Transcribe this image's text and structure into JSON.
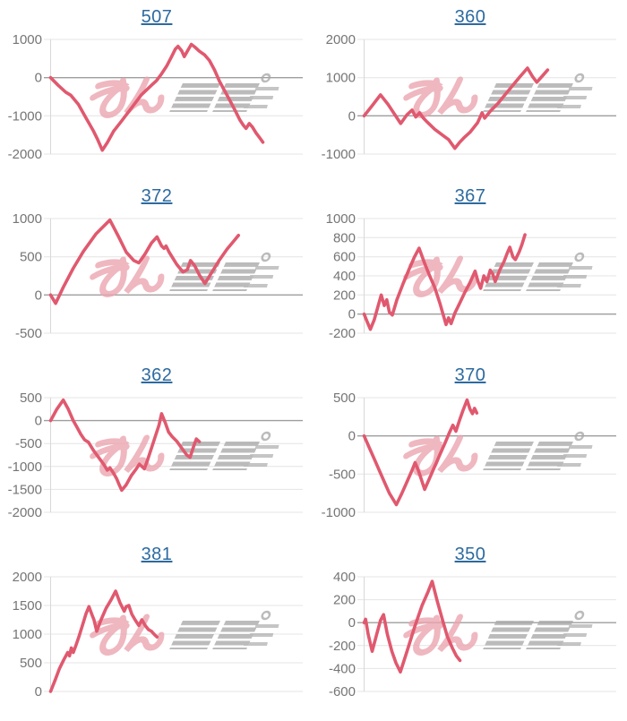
{
  "watermark": {
    "text": "みんレポ",
    "part1": "みん",
    "part2": "レポ"
  },
  "colors": {
    "line": "#e0596f",
    "grid": "#e4e4e4",
    "zero_line": "#9e9e9e",
    "axis": "#d8d8d8",
    "tick_label": "#757575",
    "title": "#2d6a9f",
    "watermark_pink": "#eba3ae",
    "watermark_gray": "#a9a9a9"
  },
  "chart_data": [
    {
      "type": "line",
      "title": "507",
      "ylim": [
        -2000,
        1000
      ],
      "yticks": [
        1000,
        0,
        -1000,
        -2000
      ],
      "legend": "none",
      "grid": true,
      "points": [
        [
          0,
          0
        ],
        [
          0.03,
          -200
        ],
        [
          0.06,
          -380
        ],
        [
          0.08,
          -460
        ],
        [
          0.11,
          -700
        ],
        [
          0.14,
          -1050
        ],
        [
          0.17,
          -1400
        ],
        [
          0.185,
          -1600
        ],
        [
          0.205,
          -1900
        ],
        [
          0.225,
          -1700
        ],
        [
          0.25,
          -1400
        ],
        [
          0.28,
          -1150
        ],
        [
          0.32,
          -800
        ],
        [
          0.36,
          -450
        ],
        [
          0.4,
          -200
        ],
        [
          0.42,
          -80
        ],
        [
          0.44,
          100
        ],
        [
          0.46,
          300
        ],
        [
          0.48,
          550
        ],
        [
          0.495,
          750
        ],
        [
          0.505,
          820
        ],
        [
          0.52,
          700
        ],
        [
          0.53,
          550
        ],
        [
          0.545,
          720
        ],
        [
          0.558,
          870
        ],
        [
          0.572,
          800
        ],
        [
          0.59,
          690
        ],
        [
          0.61,
          600
        ],
        [
          0.63,
          450
        ],
        [
          0.65,
          200
        ],
        [
          0.67,
          -100
        ],
        [
          0.695,
          -400
        ],
        [
          0.715,
          -650
        ],
        [
          0.735,
          -900
        ],
        [
          0.75,
          -1100
        ],
        [
          0.765,
          -1250
        ],
        [
          0.775,
          -1330
        ],
        [
          0.788,
          -1200
        ],
        [
          0.8,
          -1290
        ],
        [
          0.815,
          -1450
        ],
        [
          0.83,
          -1580
        ],
        [
          0.842,
          -1690
        ]
      ]
    },
    {
      "type": "line",
      "title": "360",
      "ylim": [
        -1000,
        2000
      ],
      "yticks": [
        2000,
        1000,
        0,
        -1000
      ],
      "legend": "none",
      "grid": true,
      "points": [
        [
          0,
          0
        ],
        [
          0.03,
          250
        ],
        [
          0.065,
          550
        ],
        [
          0.095,
          300
        ],
        [
          0.12,
          50
        ],
        [
          0.145,
          -200
        ],
        [
          0.17,
          30
        ],
        [
          0.19,
          150
        ],
        [
          0.205,
          -30
        ],
        [
          0.22,
          80
        ],
        [
          0.235,
          -60
        ],
        [
          0.25,
          -160
        ],
        [
          0.28,
          -350
        ],
        [
          0.31,
          -500
        ],
        [
          0.335,
          -620
        ],
        [
          0.36,
          -850
        ],
        [
          0.378,
          -700
        ],
        [
          0.395,
          -580
        ],
        [
          0.42,
          -430
        ],
        [
          0.45,
          -180
        ],
        [
          0.468,
          80
        ],
        [
          0.478,
          -60
        ],
        [
          0.5,
          120
        ],
        [
          0.53,
          320
        ],
        [
          0.555,
          520
        ],
        [
          0.585,
          760
        ],
        [
          0.615,
          1000
        ],
        [
          0.648,
          1250
        ],
        [
          0.668,
          1030
        ],
        [
          0.685,
          880
        ],
        [
          0.708,
          1050
        ],
        [
          0.728,
          1200
        ]
      ]
    },
    {
      "type": "line",
      "title": "372",
      "ylim": [
        -500,
        1000
      ],
      "yticks": [
        1000,
        500,
        0,
        -500
      ],
      "legend": "none",
      "grid": true,
      "points": [
        [
          0,
          0
        ],
        [
          0.02,
          -110
        ],
        [
          0.05,
          100
        ],
        [
          0.09,
          350
        ],
        [
          0.13,
          570
        ],
        [
          0.18,
          800
        ],
        [
          0.235,
          980
        ],
        [
          0.27,
          760
        ],
        [
          0.3,
          560
        ],
        [
          0.33,
          450
        ],
        [
          0.35,
          420
        ],
        [
          0.375,
          540
        ],
        [
          0.4,
          680
        ],
        [
          0.422,
          760
        ],
        [
          0.44,
          640
        ],
        [
          0.45,
          610
        ],
        [
          0.458,
          640
        ],
        [
          0.47,
          560
        ],
        [
          0.5,
          400
        ],
        [
          0.525,
          300
        ],
        [
          0.542,
          330
        ],
        [
          0.555,
          450
        ],
        [
          0.572,
          380
        ],
        [
          0.59,
          260
        ],
        [
          0.612,
          150
        ],
        [
          0.64,
          300
        ],
        [
          0.67,
          460
        ],
        [
          0.7,
          600
        ],
        [
          0.725,
          700
        ],
        [
          0.745,
          780
        ]
      ]
    },
    {
      "type": "line",
      "title": "367",
      "ylim": [
        -200,
        1000
      ],
      "yticks": [
        1000,
        800,
        600,
        400,
        200,
        0,
        -200
      ],
      "legend": "none",
      "grid": true,
      "points": [
        [
          0,
          0
        ],
        [
          0.012,
          -80
        ],
        [
          0.025,
          -160
        ],
        [
          0.04,
          -60
        ],
        [
          0.055,
          80
        ],
        [
          0.068,
          200
        ],
        [
          0.08,
          90
        ],
        [
          0.09,
          150
        ],
        [
          0.1,
          20
        ],
        [
          0.112,
          -10
        ],
        [
          0.13,
          150
        ],
        [
          0.155,
          320
        ],
        [
          0.18,
          480
        ],
        [
          0.2,
          600
        ],
        [
          0.218,
          690
        ],
        [
          0.24,
          530
        ],
        [
          0.26,
          400
        ],
        [
          0.28,
          280
        ],
        [
          0.3,
          120
        ],
        [
          0.315,
          -20
        ],
        [
          0.325,
          -110
        ],
        [
          0.335,
          -40
        ],
        [
          0.345,
          -100
        ],
        [
          0.36,
          10
        ],
        [
          0.38,
          120
        ],
        [
          0.4,
          230
        ],
        [
          0.42,
          330
        ],
        [
          0.44,
          450
        ],
        [
          0.452,
          340
        ],
        [
          0.462,
          270
        ],
        [
          0.475,
          400
        ],
        [
          0.487,
          340
        ],
        [
          0.5,
          460
        ],
        [
          0.51,
          420
        ],
        [
          0.52,
          340
        ],
        [
          0.538,
          460
        ],
        [
          0.555,
          550
        ],
        [
          0.568,
          640
        ],
        [
          0.578,
          700
        ],
        [
          0.59,
          600
        ],
        [
          0.6,
          570
        ],
        [
          0.615,
          650
        ],
        [
          0.625,
          720
        ],
        [
          0.638,
          830
        ]
      ]
    },
    {
      "type": "line",
      "title": "362",
      "ylim": [
        -2000,
        500
      ],
      "yticks": [
        500,
        0,
        -500,
        -1000,
        -1500,
        -2000
      ],
      "legend": "none",
      "grid": true,
      "points": [
        [
          0,
          0
        ],
        [
          0.025,
          250
        ],
        [
          0.05,
          450
        ],
        [
          0.07,
          250
        ],
        [
          0.09,
          0
        ],
        [
          0.105,
          -150
        ],
        [
          0.12,
          -300
        ],
        [
          0.135,
          -420
        ],
        [
          0.15,
          -470
        ],
        [
          0.17,
          -650
        ],
        [
          0.19,
          -800
        ],
        [
          0.21,
          -950
        ],
        [
          0.225,
          -1080
        ],
        [
          0.235,
          -1030
        ],
        [
          0.25,
          -1150
        ],
        [
          0.262,
          -1270
        ],
        [
          0.272,
          -1400
        ],
        [
          0.282,
          -1520
        ],
        [
          0.3,
          -1400
        ],
        [
          0.32,
          -1200
        ],
        [
          0.34,
          -1050
        ],
        [
          0.352,
          -950
        ],
        [
          0.362,
          -1000
        ],
        [
          0.372,
          -1050
        ],
        [
          0.385,
          -850
        ],
        [
          0.4,
          -600
        ],
        [
          0.415,
          -350
        ],
        [
          0.43,
          -100
        ],
        [
          0.44,
          150
        ],
        [
          0.455,
          -50
        ],
        [
          0.468,
          -250
        ],
        [
          0.482,
          -350
        ],
        [
          0.5,
          -450
        ],
        [
          0.52,
          -600
        ],
        [
          0.54,
          -750
        ],
        [
          0.553,
          -800
        ],
        [
          0.568,
          -550
        ],
        [
          0.578,
          -400
        ],
        [
          0.59,
          -460
        ]
      ]
    },
    {
      "type": "line",
      "title": "370",
      "ylim": [
        -1000,
        500
      ],
      "yticks": [
        500,
        0,
        -500,
        -1000
      ],
      "legend": "none",
      "grid": true,
      "points": [
        [
          0,
          0
        ],
        [
          0.02,
          -150
        ],
        [
          0.04,
          -300
        ],
        [
          0.06,
          -450
        ],
        [
          0.08,
          -600
        ],
        [
          0.1,
          -750
        ],
        [
          0.128,
          -900
        ],
        [
          0.15,
          -750
        ],
        [
          0.17,
          -600
        ],
        [
          0.19,
          -450
        ],
        [
          0.202,
          -350
        ],
        [
          0.215,
          -450
        ],
        [
          0.228,
          -580
        ],
        [
          0.24,
          -700
        ],
        [
          0.26,
          -550
        ],
        [
          0.28,
          -400
        ],
        [
          0.3,
          -250
        ],
        [
          0.32,
          -100
        ],
        [
          0.338,
          40
        ],
        [
          0.352,
          140
        ],
        [
          0.364,
          60
        ],
        [
          0.378,
          200
        ],
        [
          0.392,
          330
        ],
        [
          0.408,
          470
        ],
        [
          0.42,
          350
        ],
        [
          0.43,
          290
        ],
        [
          0.438,
          360
        ],
        [
          0.447,
          300
        ]
      ]
    },
    {
      "type": "line",
      "title": "381",
      "ylim": [
        0,
        2000
      ],
      "yticks": [
        2000,
        1500,
        1000,
        500,
        0
      ],
      "legend": "none",
      "grid": true,
      "points": [
        [
          0,
          0
        ],
        [
          0.018,
          200
        ],
        [
          0.035,
          400
        ],
        [
          0.052,
          550
        ],
        [
          0.068,
          680
        ],
        [
          0.075,
          620
        ],
        [
          0.082,
          760
        ],
        [
          0.09,
          680
        ],
        [
          0.1,
          800
        ],
        [
          0.112,
          950
        ],
        [
          0.126,
          1150
        ],
        [
          0.14,
          1350
        ],
        [
          0.152,
          1480
        ],
        [
          0.163,
          1350
        ],
        [
          0.172,
          1250
        ],
        [
          0.183,
          1050
        ],
        [
          0.2,
          1250
        ],
        [
          0.22,
          1450
        ],
        [
          0.24,
          1600
        ],
        [
          0.258,
          1750
        ],
        [
          0.275,
          1550
        ],
        [
          0.292,
          1400
        ],
        [
          0.3,
          1480
        ],
        [
          0.31,
          1500
        ],
        [
          0.322,
          1350
        ],
        [
          0.335,
          1250
        ],
        [
          0.35,
          1150
        ],
        [
          0.362,
          1250
        ],
        [
          0.375,
          1150
        ],
        [
          0.388,
          1080
        ],
        [
          0.4,
          1050
        ],
        [
          0.412,
          990
        ],
        [
          0.422,
          950
        ]
      ]
    },
    {
      "type": "line",
      "title": "350",
      "ylim": [
        -600,
        400
      ],
      "yticks": [
        400,
        200,
        0,
        -200,
        -400,
        -600
      ],
      "legend": "none",
      "grid": true,
      "points": [
        [
          0,
          0
        ],
        [
          0.006,
          30
        ],
        [
          0.016,
          -100
        ],
        [
          0.032,
          -250
        ],
        [
          0.05,
          -100
        ],
        [
          0.065,
          20
        ],
        [
          0.077,
          70
        ],
        [
          0.092,
          -100
        ],
        [
          0.11,
          -250
        ],
        [
          0.126,
          -350
        ],
        [
          0.144,
          -430
        ],
        [
          0.17,
          -250
        ],
        [
          0.2,
          -40
        ],
        [
          0.23,
          150
        ],
        [
          0.252,
          260
        ],
        [
          0.27,
          360
        ],
        [
          0.29,
          190
        ],
        [
          0.31,
          30
        ],
        [
          0.33,
          -120
        ],
        [
          0.35,
          -220
        ],
        [
          0.366,
          -290
        ],
        [
          0.38,
          -330
        ]
      ]
    }
  ]
}
